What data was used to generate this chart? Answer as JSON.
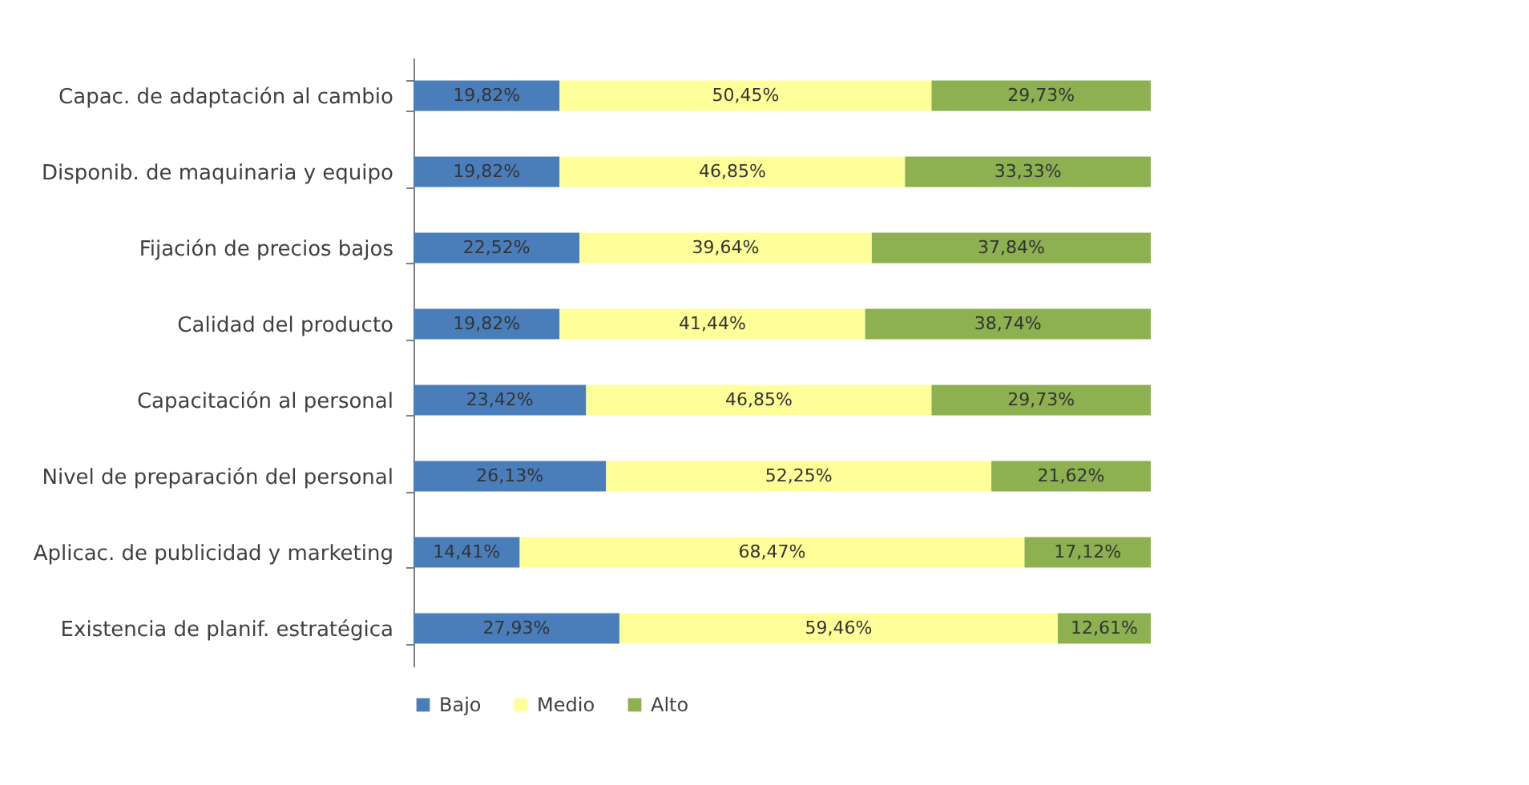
{
  "chart_data": {
    "type": "bar",
    "orientation": "horizontal",
    "stacked": true,
    "legend": "bottom",
    "categories": [
      "Capac. de adaptación al cambio",
      "Disponib. de maquinaria y equipo",
      "Fijación de precios bajos",
      "Calidad del producto",
      "Capacitación al personal",
      "Nivel de preparación del personal",
      "Aplicac. de publicidad y marketing",
      "Existencia de  planif. estratégica"
    ],
    "series": [
      {
        "name": "Bajo",
        "color": "#4a7ebb",
        "values": [
          19.82,
          19.82,
          22.52,
          19.82,
          23.42,
          26.13,
          14.41,
          27.93
        ],
        "value_labels": [
          "19,82%",
          "19,82%",
          "22,52%",
          "19,82%",
          "23,42%",
          "26,13%",
          "14,41%",
          "27,93%"
        ]
      },
      {
        "name": "Medio",
        "color": "#ffff99",
        "values": [
          50.45,
          46.85,
          39.64,
          41.44,
          46.85,
          52.25,
          68.47,
          59.46
        ],
        "value_labels": [
          "50,45%",
          "46,85%",
          "39,64%",
          "41,44%",
          "46,85%",
          "52,25%",
          "68,47%",
          "59,46%"
        ]
      },
      {
        "name": "Alto",
        "color": "#8db050",
        "values": [
          29.73,
          33.33,
          37.84,
          38.74,
          29.73,
          21.62,
          17.12,
          12.61
        ],
        "value_labels": [
          "29,73%",
          "33,33%",
          "37,84%",
          "38,74%",
          "29,73%",
          "21,62%",
          "17,12%",
          "12,61%"
        ]
      }
    ]
  }
}
